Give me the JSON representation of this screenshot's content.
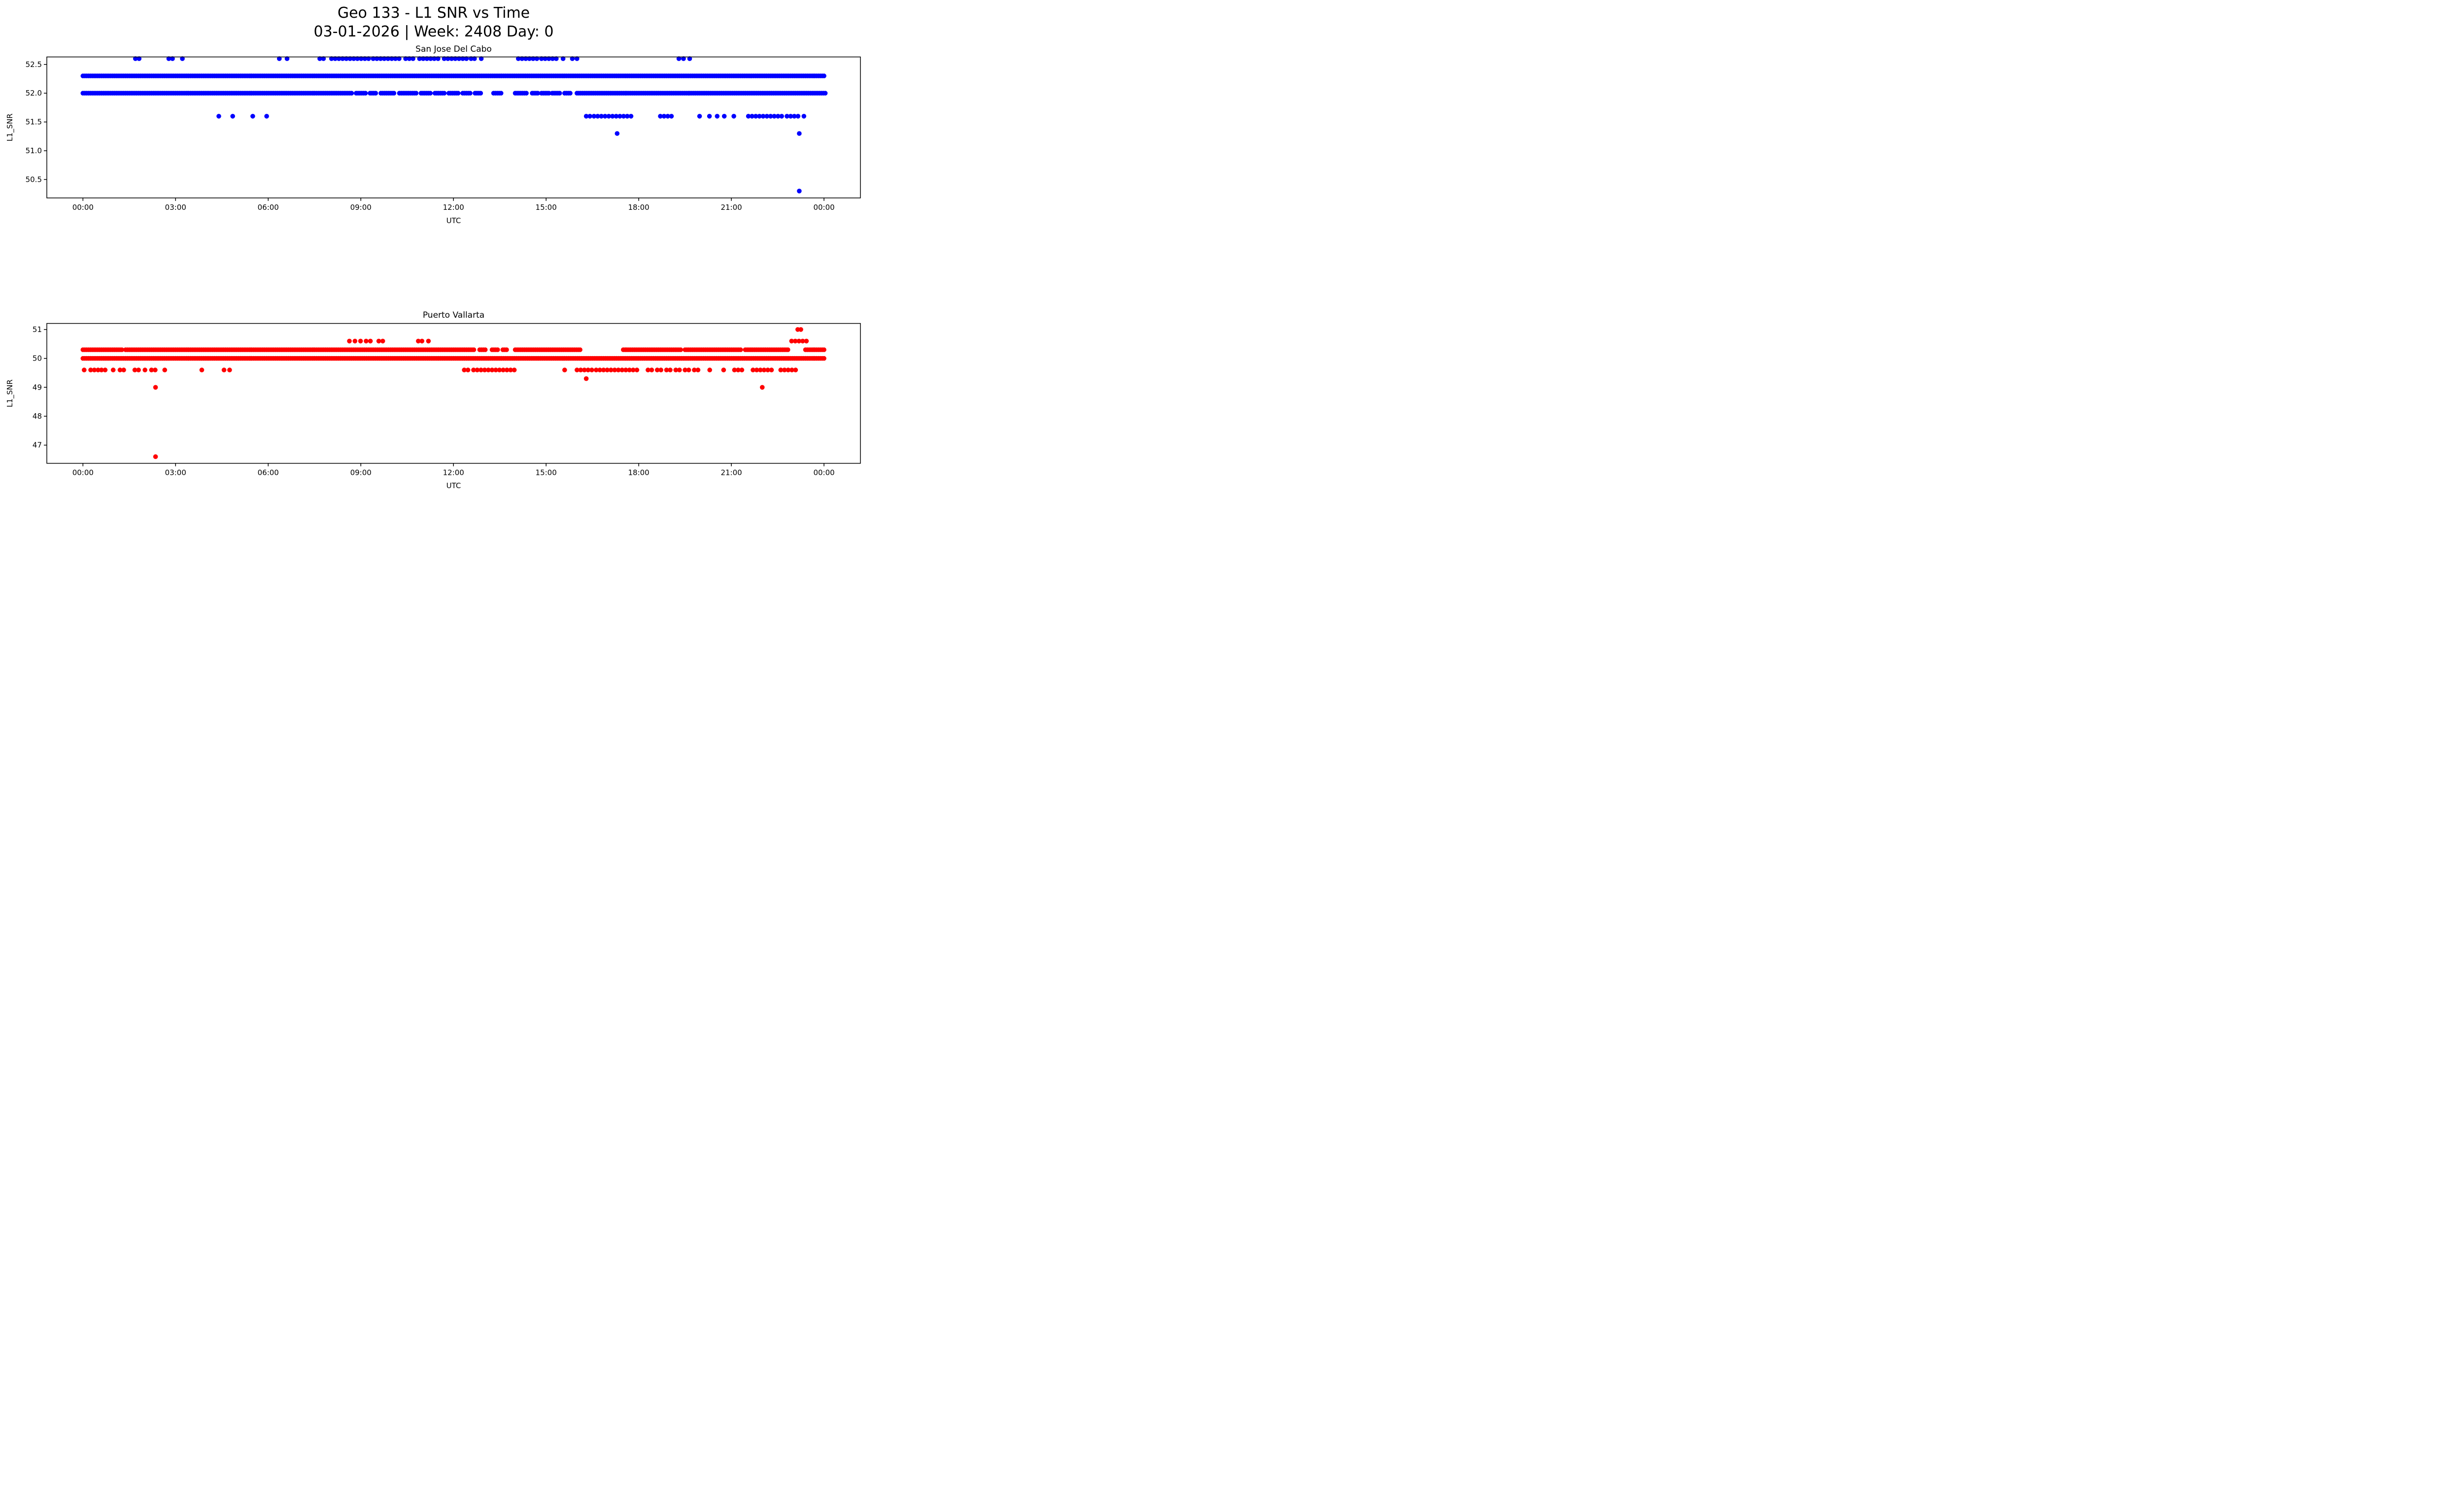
{
  "figure": {
    "title": "Geo 133 - L1 SNR vs Time",
    "subtitle": "03-01-2026 | Week: 2408 Day: 0",
    "background_color": "#ffffff",
    "text_color": "#000000"
  },
  "chart_data": [
    {
      "type": "scatter",
      "title": "San Jose Del Cabo",
      "xlabel": "UTC",
      "ylabel": "L1_SNR",
      "color": "#0000ff",
      "grid": false,
      "legend": "none",
      "xlim_hours": [
        -1.17,
        25.18
      ],
      "ylim": [
        50.18,
        52.63
      ],
      "xticks": [
        {
          "hour": 0,
          "label": "00:00"
        },
        {
          "hour": 3,
          "label": "03:00"
        },
        {
          "hour": 6,
          "label": "06:00"
        },
        {
          "hour": 9,
          "label": "09:00"
        },
        {
          "hour": 12,
          "label": "12:00"
        },
        {
          "hour": 15,
          "label": "15:00"
        },
        {
          "hour": 18,
          "label": "18:00"
        },
        {
          "hour": 21,
          "label": "21:00"
        },
        {
          "hour": 24,
          "label": "00:00"
        }
      ],
      "yticks": [
        {
          "value": 50.5,
          "label": "50.5"
        },
        {
          "value": 51.0,
          "label": "51.0"
        },
        {
          "value": 51.5,
          "label": "51.5"
        },
        {
          "value": 52.0,
          "label": "52.0"
        },
        {
          "value": 52.5,
          "label": "52.5"
        }
      ],
      "series": [
        {
          "y": 52.6,
          "step": 0.12,
          "segments": [
            [
              8.05,
              9.3
            ],
            [
              9.4,
              10.3
            ],
            [
              10.45,
              10.75
            ],
            [
              10.9,
              11.6
            ],
            [
              11.7,
              12.45
            ],
            [
              14.1,
              14.75
            ],
            [
              14.85,
              15.4
            ],
            [
              15.55,
              15.65
            ]
          ],
          "points": [
            1.7,
            1.82,
            2.78,
            2.9,
            3.22,
            6.36,
            6.61,
            7.67,
            7.79,
            12.57,
            12.68,
            12.9,
            15.85,
            16.0,
            19.3,
            19.45,
            19.65
          ]
        },
        {
          "y": 52.3,
          "segments": [
            [
              0,
              24.05
            ]
          ]
        },
        {
          "y": 52.0,
          "segments": [
            [
              0,
              8.7
            ],
            [
              8.85,
              9.15
            ],
            [
              9.3,
              9.5
            ],
            [
              9.65,
              10.1
            ],
            [
              10.25,
              10.8
            ],
            [
              10.95,
              11.3
            ],
            [
              11.4,
              11.75
            ],
            [
              11.85,
              12.2
            ],
            [
              12.3,
              12.55
            ],
            [
              12.7,
              12.9
            ],
            [
              13.3,
              13.55
            ],
            [
              14.0,
              14.4
            ],
            [
              14.55,
              14.75
            ],
            [
              14.85,
              15.1
            ],
            [
              15.2,
              15.45
            ],
            [
              15.6,
              15.8
            ],
            [
              16.0,
              24.05
            ]
          ]
        },
        {
          "y": 51.6,
          "step": 0.12,
          "segments": [
            [
              16.3,
              16.45
            ],
            [
              16.55,
              17.85
            ],
            [
              18.7,
              19.15
            ],
            [
              21.55,
              22.65
            ],
            [
              22.8,
              23.2
            ]
          ],
          "points": [
            4.4,
            4.85,
            5.5,
            5.95,
            19.97,
            20.29,
            20.54,
            20.77,
            21.08,
            23.35
          ]
        },
        {
          "y": 51.3,
          "points": [
            17.3,
            23.2
          ]
        },
        {
          "y": 50.3,
          "points": [
            23.2
          ]
        }
      ]
    },
    {
      "type": "scatter",
      "title": "Puerto Vallarta",
      "xlabel": "UTC",
      "ylabel": "L1_SNR",
      "color": "#ff0000",
      "grid": false,
      "legend": "none",
      "xlim_hours": [
        -1.17,
        25.18
      ],
      "ylim": [
        46.37,
        51.21
      ],
      "xticks": [
        {
          "hour": 0,
          "label": "00:00"
        },
        {
          "hour": 3,
          "label": "03:00"
        },
        {
          "hour": 6,
          "label": "06:00"
        },
        {
          "hour": 9,
          "label": "09:00"
        },
        {
          "hour": 12,
          "label": "12:00"
        },
        {
          "hour": 15,
          "label": "15:00"
        },
        {
          "hour": 18,
          "label": "18:00"
        },
        {
          "hour": 21,
          "label": "21:00"
        },
        {
          "hour": 24,
          "label": "00:00"
        }
      ],
      "yticks": [
        {
          "value": 47,
          "label": "47"
        },
        {
          "value": 48,
          "label": "48"
        },
        {
          "value": 49,
          "label": "49"
        },
        {
          "value": 50,
          "label": "50"
        },
        {
          "value": 51,
          "label": "51"
        }
      ],
      "series": [
        {
          "y": 51.0,
          "points": [
            23.15,
            23.25
          ]
        },
        {
          "y": 50.6,
          "step": 0.12,
          "segments": [
            [
              22.95,
              23.45
            ]
          ],
          "points": [
            8.63,
            8.81,
            8.99,
            9.17,
            9.31,
            9.58,
            9.71,
            10.86,
            10.98,
            11.19
          ]
        },
        {
          "y": 50.3,
          "segments": [
            [
              0,
              1.28
            ],
            [
              1.38,
              12.68
            ],
            [
              12.85,
              13.05
            ],
            [
              13.25,
              13.45
            ],
            [
              13.6,
              13.75
            ],
            [
              14.0,
              16.1
            ],
            [
              17.5,
              19.4
            ],
            [
              19.5,
              21.35
            ],
            [
              21.45,
              22.85
            ],
            [
              23.4,
              24.05
            ]
          ]
        },
        {
          "y": 50.0,
          "segments": [
            [
              0,
              24.05
            ]
          ]
        },
        {
          "y": 49.6,
          "step": 0.12,
          "segments": [
            [
              0.25,
              0.5
            ],
            [
              0.6,
              0.78
            ],
            [
              1.2,
              1.42
            ],
            [
              1.68,
              1.85
            ],
            [
              2.22,
              2.45
            ],
            [
              12.35,
              12.55
            ],
            [
              12.65,
              14.05
            ],
            [
              16.0,
              16.55
            ],
            [
              16.62,
              18.0
            ],
            [
              18.3,
              18.45
            ],
            [
              18.6,
              18.75
            ],
            [
              18.9,
              19.1
            ],
            [
              19.2,
              19.35
            ],
            [
              19.5,
              19.65
            ],
            [
              19.8,
              19.95
            ],
            [
              21.1,
              21.35
            ],
            [
              21.7,
              22.4
            ],
            [
              22.6,
              23.15
            ]
          ],
          "points": [
            0.04,
            0.98,
            2.01,
            2.65,
            3.85,
            4.57,
            4.75,
            15.6,
            20.3,
            20.75
          ]
        },
        {
          "y": 49.3,
          "points": [
            16.3
          ]
        },
        {
          "y": 49.0,
          "points": [
            2.35,
            22.0
          ]
        },
        {
          "y": 46.6,
          "points": [
            2.35
          ]
        }
      ]
    }
  ]
}
